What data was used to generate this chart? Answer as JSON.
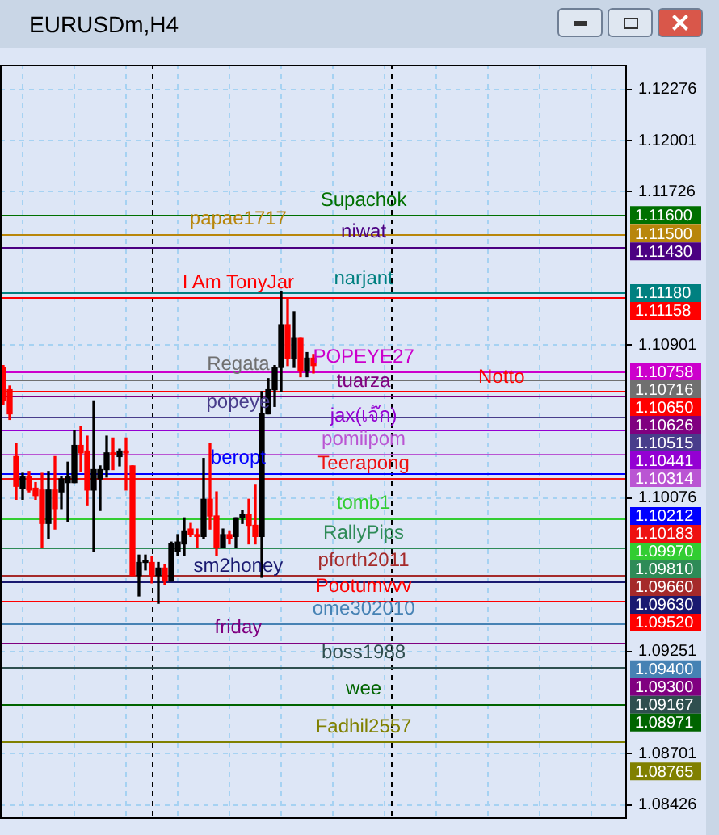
{
  "chart_data": {
    "type": "candlestick",
    "title": "EURUSDm,H4",
    "categories": [
      null,
      null,
      null,
      null,
      null,
      null,
      null,
      null,
      null,
      null,
      null,
      null,
      null,
      null,
      null,
      null,
      null,
      null,
      null,
      null,
      null,
      null,
      null,
      null,
      null,
      null,
      null,
      null,
      null,
      null,
      null,
      null,
      null,
      null,
      null,
      null,
      null,
      null,
      null,
      null,
      null,
      null,
      null,
      null,
      null,
      null,
      null,
      null,
      null,
      null,
      null,
      null,
      null,
      null,
      null,
      null,
      null,
      null,
      null,
      null,
      null,
      null,
      null,
      null,
      null,
      null,
      null,
      null,
      null,
      null,
      null,
      null,
      null,
      null,
      null,
      null,
      null,
      null,
      null,
      null,
      null,
      null,
      null,
      null,
      null,
      null,
      null,
      null,
      null,
      null,
      null,
      null,
      null,
      null,
      null,
      null,
      null
    ],
    "ohlc": [
      [
        1.1078,
        1.1079,
        1.1058,
        1.106
      ],
      [
        1.1066,
        1.1068,
        1.105,
        1.1053
      ],
      [
        1.103,
        1.1037,
        1.1007,
        1.1014
      ],
      [
        1.1013,
        1.1021,
        1.1007,
        1.1019
      ],
      [
        1.1019,
        1.1022,
        1.1011,
        1.1012
      ],
      [
        1.1013,
        1.1016,
        1.1007,
        1.1009
      ],
      [
        1.1012,
        1.1021,
        1.0981,
        1.0994
      ],
      [
        1.0994,
        1.1022,
        1.0986,
        1.1012
      ],
      [
        1.1012,
        1.103,
        1.0991,
        1.1002
      ],
      [
        1.1011,
        1.1019,
        1.1002,
        1.1018
      ],
      [
        1.1016,
        1.1027,
        1.0995,
        1.1019
      ],
      [
        1.1016,
        1.1044,
        1.1016,
        1.1036
      ],
      [
        1.1036,
        1.1046,
        1.1022,
        1.1032
      ],
      [
        1.1033,
        1.1041,
        1.1004,
        1.1012
      ],
      [
        1.1012,
        1.106,
        1.0979,
        1.1023
      ],
      [
        1.1018,
        1.1025,
        1.1001,
        1.1023
      ],
      [
        1.1023,
        1.1041,
        1.1019,
        1.1032
      ],
      [
        1.1032,
        1.104,
        1.1023,
        1.1031
      ],
      [
        1.103,
        1.1034,
        1.1025,
        1.1033
      ],
      [
        1.1033,
        1.104,
        1.1012,
        1.1032
      ],
      [
        1.1025,
        1.1025,
        1.0966,
        1.0966
      ],
      [
        1.0966,
        1.0977,
        1.0955,
        1.0973
      ],
      [
        1.0973,
        1.0977,
        1.0969,
        1.0974
      ],
      [
        1.0973,
        1.0976,
        1.0962,
        1.0966
      ],
      [
        1.0966,
        1.0973,
        1.0951,
        1.097
      ],
      [
        1.097,
        1.0972,
        1.0961,
        1.0963
      ],
      [
        1.0963,
        1.0984,
        1.0963,
        1.0983
      ],
      [
        1.0979,
        1.0988,
        1.0977,
        1.0984
      ],
      [
        1.0983,
        1.0997,
        1.0977,
        1.099
      ],
      [
        1.0991,
        1.0994,
        1.0987,
        1.0988
      ],
      [
        1.0988,
        1.0991,
        1.0981,
        1.0987
      ],
      [
        1.0987,
        1.1029,
        1.0986,
        1.1007
      ],
      [
        1.1007,
        1.1037,
        1.0991,
        1.0998
      ],
      [
        1.0998,
        1.1011,
        1.0977,
        1.0981
      ],
      [
        1.0981,
        1.0991,
        1.0981,
        1.0988
      ],
      [
        1.0988,
        1.099,
        1.0983,
        1.0986
      ],
      [
        1.0987,
        1.0997,
        1.0981,
        1.0997
      ],
      [
        1.0997,
        1.1001,
        1.0994,
        1.0999
      ],
      [
        1.0999,
        1.1007,
        1.0983,
        1.0993
      ],
      [
        1.0993,
        1.1015,
        1.0983,
        1.0987
      ],
      [
        1.0987,
        1.1065,
        1.0965,
        1.1053
      ],
      [
        1.1053,
        1.1072,
        1.1053,
        1.1066
      ],
      [
        1.1066,
        1.1079,
        1.1057,
        1.1078
      ],
      [
        1.1078,
        1.1119,
        1.1065,
        1.1101
      ],
      [
        1.1101,
        1.1115,
        1.1079,
        1.1083
      ],
      [
        1.1083,
        1.1108,
        1.1078,
        1.1094
      ],
      [
        1.1094,
        1.1094,
        1.1073,
        1.1076
      ],
      [
        1.1076,
        1.1086,
        1.1073,
        1.1083
      ],
      [
        1.1083,
        1.1085,
        1.1075,
        1.1079
      ],
      null,
      null,
      null,
      null,
      null,
      null,
      null,
      null,
      null,
      null,
      null,
      null,
      null,
      null,
      null,
      null,
      null,
      null,
      null,
      null,
      null,
      null,
      null,
      null,
      null,
      null,
      null,
      null,
      null,
      null,
      null,
      null,
      null,
      null,
      null,
      null,
      null,
      null,
      null,
      null,
      null,
      null,
      null,
      null,
      null,
      null,
      null,
      null
    ],
    "ylim": [
      1.0835,
      1.1241
    ],
    "yticks": [
      1.12276,
      1.12001,
      1.11726,
      1.10901,
      1.10076,
      1.09251,
      1.08701,
      1.08426
    ],
    "tick_labels": "y",
    "grid": true,
    "ref_lines": [
      {
        "axis": "y",
        "value": 1.116,
        "label": "Supachok",
        "color": "#007000"
      },
      {
        "axis": "y",
        "value": 1.115,
        "label": "papae1717",
        "color": "#b8860b"
      },
      {
        "axis": "y",
        "value": 1.1143,
        "label": "niwat",
        "color": "#4b0082"
      },
      {
        "axis": "y",
        "value": 1.1118,
        "label": "narjant",
        "color": "#008080"
      },
      {
        "axis": "y",
        "value": 1.11158,
        "label": "I Am TonyJar",
        "color": "#ff0000"
      },
      {
        "axis": "y",
        "value": 1.10758,
        "label": "POPEYE27",
        "color": "#cc00cc"
      },
      {
        "axis": "y",
        "value": 1.10716,
        "label": "Regata",
        "color": "#707070"
      },
      {
        "axis": "y",
        "value": 1.10626,
        "label": "tuarza",
        "color": "#800080"
      },
      {
        "axis": "y",
        "value": 1.1065,
        "label": "Notto",
        "color": "#ff0000"
      },
      {
        "axis": "y",
        "value": 1.10515,
        "label": "popeye",
        "color": "#483d8b"
      },
      {
        "axis": "y",
        "value": 1.10441,
        "label": "jax(เจ๊ก)",
        "color": "#9400d3"
      },
      {
        "axis": "y",
        "value": 1.10314,
        "label": "pomiipom",
        "color": "#ba55d3"
      },
      {
        "axis": "y",
        "value": 1.10212,
        "label": "beropt",
        "color": "#0000ff"
      },
      {
        "axis": "y",
        "value": 1.10183,
        "label": "Teerapong",
        "color": "#ee1111"
      },
      {
        "axis": "y",
        "value": 1.0997,
        "label": "tomb1",
        "color": "#32cd32"
      },
      {
        "axis": "y",
        "value": 1.0981,
        "label": "RallyPips",
        "color": "#2e8b57"
      },
      {
        "axis": "y",
        "value": 1.0966,
        "label": "pforth2011",
        "color": "#a52a2a"
      },
      {
        "axis": "y",
        "value": 1.0963,
        "label": "sm2honey",
        "color": "#191970"
      },
      {
        "axis": "y",
        "value": 1.0952,
        "label": "Pootumvvv",
        "color": "#ff0000"
      },
      {
        "axis": "y",
        "value": 1.094,
        "label": "ome302010",
        "color": "#4682b4"
      },
      {
        "axis": "y",
        "value": 1.093,
        "label": "friday",
        "color": "#800080"
      },
      {
        "axis": "y",
        "value": 1.09167,
        "label": "boss1988",
        "color": "#2f4f4f"
      },
      {
        "axis": "y",
        "value": 1.08971,
        "label": "wee",
        "color": "#006400"
      },
      {
        "axis": "y",
        "value": 1.08765,
        "label": "Fadhil2557",
        "color": "#808000"
      }
    ],
    "annotations": [
      "1.11600",
      "1.11500",
      "1.11430",
      "1.11180",
      "1.11158",
      "1.10758",
      "1.10716",
      "1.10626",
      "1.10650",
      "1.10515",
      "1.10441",
      "1.10314",
      "1.10212",
      "1.10183",
      "1.09970",
      "1.09810",
      "1.09660",
      "1.09630",
      "1.09520",
      "1.09400",
      "1.09300",
      "1.09167",
      "1.08971",
      "1.08765"
    ]
  }
}
